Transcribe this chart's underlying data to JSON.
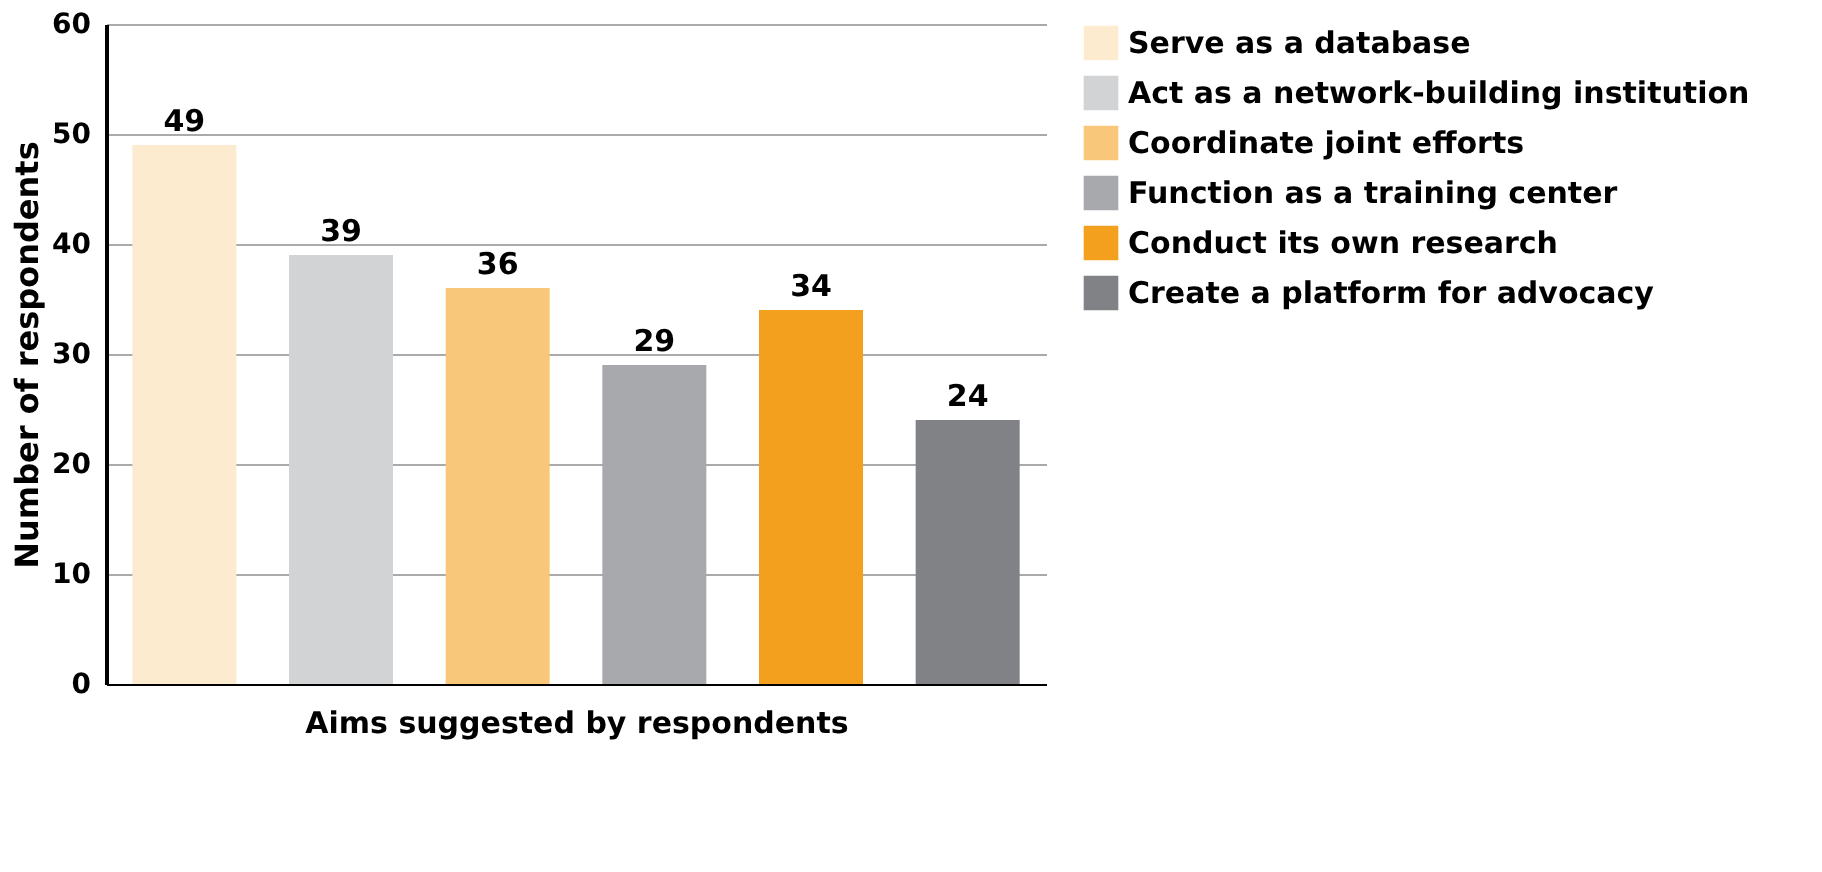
{
  "chart_data": {
    "type": "bar",
    "xlabel": "Aims suggested by respondents",
    "ylabel": "Number of respondents",
    "categories": [
      null,
      null,
      null,
      null,
      null,
      null
    ],
    "series": [
      {
        "name": "Serve as a database",
        "color": "#fdebd0",
        "values": [
          49,
          null,
          null,
          null,
          null,
          null
        ]
      },
      {
        "name": "Act as a network-building institution",
        "color": "#d1d3d4",
        "values": [
          null,
          39,
          null,
          null,
          null,
          null
        ]
      },
      {
        "name": "Coordinate joint efforts",
        "color": "#f9c77a",
        "values": [
          null,
          null,
          36,
          null,
          null,
          null
        ]
      },
      {
        "name": "Function as a training center",
        "color": "#a7a9ac",
        "values": [
          null,
          null,
          null,
          29,
          null,
          null
        ]
      },
      {
        "name": "Conduct its own research",
        "color": "#f2a01e",
        "values": [
          null,
          null,
          null,
          null,
          34,
          null
        ]
      },
      {
        "name": "Create a platform for advocacy",
        "color": "#808285",
        "values": [
          null,
          null,
          null,
          null,
          null,
          24
        ]
      }
    ],
    "ylim": [
      0,
      60
    ],
    "yticks": [
      0,
      10,
      20,
      30,
      40,
      50,
      60
    ],
    "grid": "y",
    "legend": "right",
    "data_labels": true
  }
}
